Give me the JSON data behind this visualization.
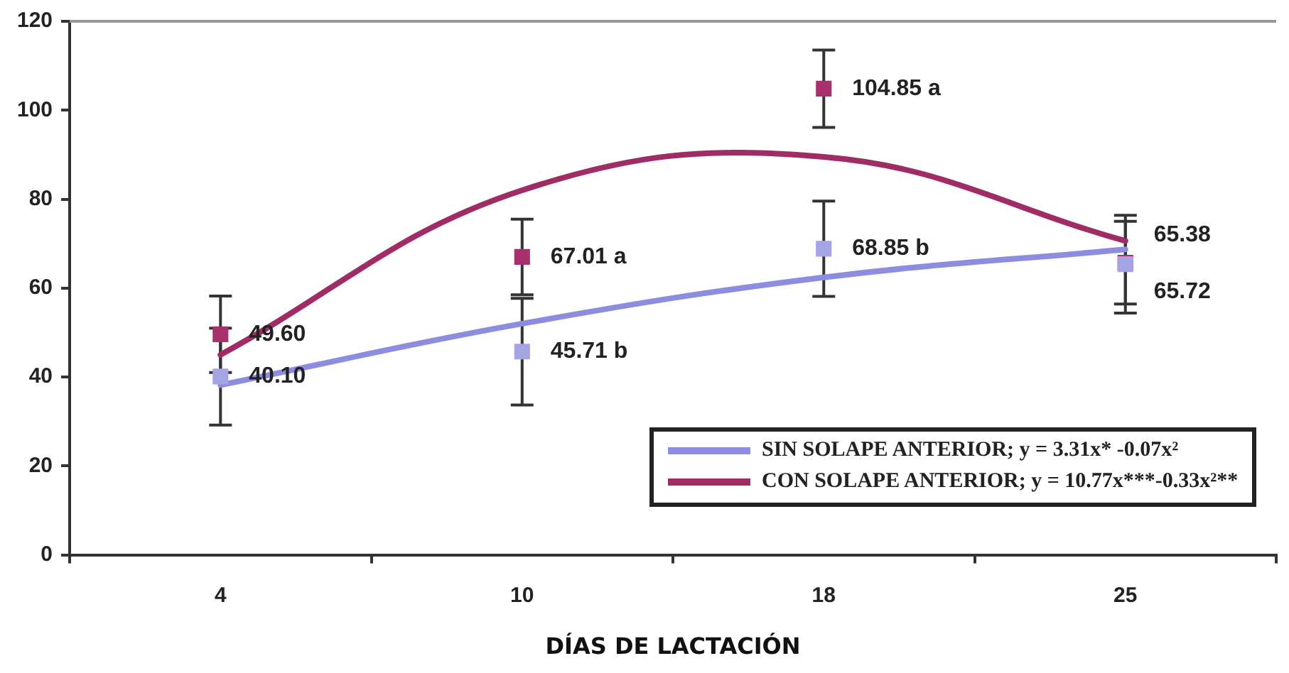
{
  "chart_data": {
    "type": "line",
    "xlabel": "DÍAS DE LACTACIÓN",
    "categories": [
      "4",
      "10",
      "18",
      "25"
    ],
    "ylim": [
      0,
      120
    ],
    "yticks": [
      0,
      20,
      40,
      60,
      80,
      100,
      120
    ],
    "grid": false,
    "legend": "bottom right",
    "series": [
      {
        "name": "SIN SOLAPE ANTERIOR; y = 3.31x* -0.07x²",
        "type": "line",
        "marker": "none",
        "color": "#8c8ce0",
        "values": [
          38.2,
          52,
          62.4,
          68.7
        ]
      },
      {
        "name": "CON SOLAPE ANTERIOR; y = 10.77x***-0.33x²**",
        "type": "line",
        "marker": "none",
        "color": "#a02c66",
        "values": [
          45,
          82,
          89.5,
          70.6
        ]
      },
      {
        "type": "scatter",
        "marker": "square",
        "color": "#a4a4e4",
        "values": [
          40.1,
          45.71,
          68.85,
          65.38
        ],
        "errors": [
          10.9,
          12,
          10.7,
          11
        ],
        "value_labels": [
          "40.10",
          "45.71 b",
          "68.85 b",
          "65.38"
        ]
      },
      {
        "type": "scatter",
        "marker": "square",
        "color": "#a8306c",
        "values": [
          49.6,
          67.01,
          104.85,
          65.72
        ],
        "errors": [
          8.6,
          8.5,
          8.7,
          9.3
        ],
        "value_labels": [
          "49.60",
          "67.01 a",
          "104.85 a",
          "65.72"
        ]
      }
    ]
  }
}
